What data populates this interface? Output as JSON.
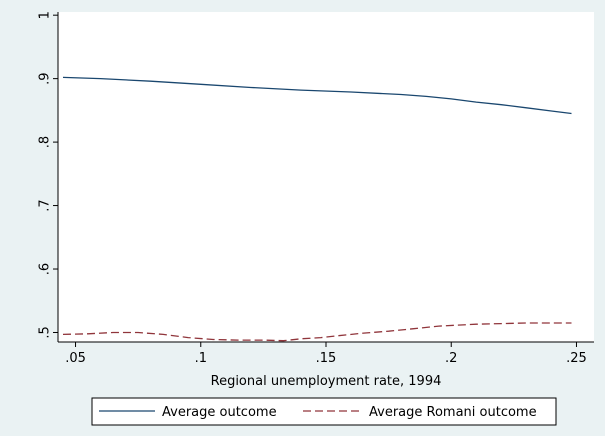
{
  "chart_data": {
    "type": "line",
    "title": "",
    "xlabel": "Regional unemployment rate, 1994",
    "ylabel": "",
    "xlim": [
      0.043,
      0.257
    ],
    "ylim": [
      0.485,
      1.005
    ],
    "x_ticks": [
      0.05,
      0.1,
      0.15,
      0.2,
      0.25
    ],
    "x_tick_labels": [
      ".05",
      ".1",
      ".15",
      ".2",
      ".25"
    ],
    "y_ticks": [
      0.5,
      0.6,
      0.7,
      0.8,
      0.9,
      1.0
    ],
    "y_tick_labels": [
      ".5",
      ".6",
      ".7",
      ".8",
      ".9",
      "1"
    ],
    "grid": false,
    "legend_position": "bottom",
    "series": [
      {
        "name": "Average outcome",
        "color": "#1a476f",
        "style": "solid",
        "points": [
          [
            0.045,
            0.902
          ],
          [
            0.06,
            0.9
          ],
          [
            0.08,
            0.896
          ],
          [
            0.1,
            0.891
          ],
          [
            0.12,
            0.886
          ],
          [
            0.14,
            0.882
          ],
          [
            0.16,
            0.879
          ],
          [
            0.18,
            0.875
          ],
          [
            0.19,
            0.872
          ],
          [
            0.2,
            0.868
          ],
          [
            0.21,
            0.863
          ],
          [
            0.22,
            0.859
          ],
          [
            0.23,
            0.854
          ],
          [
            0.24,
            0.849
          ],
          [
            0.248,
            0.845
          ]
        ]
      },
      {
        "name": "Average Romani outcome",
        "color": "#90353b",
        "style": "dashed",
        "points": [
          [
            0.045,
            0.497
          ],
          [
            0.055,
            0.498
          ],
          [
            0.065,
            0.5
          ],
          [
            0.075,
            0.5
          ],
          [
            0.085,
            0.497
          ],
          [
            0.095,
            0.492
          ],
          [
            0.105,
            0.489
          ],
          [
            0.115,
            0.488
          ],
          [
            0.125,
            0.488
          ],
          [
            0.133,
            0.487
          ],
          [
            0.14,
            0.49
          ],
          [
            0.148,
            0.492
          ],
          [
            0.155,
            0.495
          ],
          [
            0.165,
            0.499
          ],
          [
            0.175,
            0.502
          ],
          [
            0.185,
            0.506
          ],
          [
            0.195,
            0.51
          ],
          [
            0.21,
            0.513
          ],
          [
            0.22,
            0.514
          ],
          [
            0.23,
            0.515
          ],
          [
            0.24,
            0.515
          ],
          [
            0.248,
            0.515
          ]
        ]
      }
    ]
  }
}
